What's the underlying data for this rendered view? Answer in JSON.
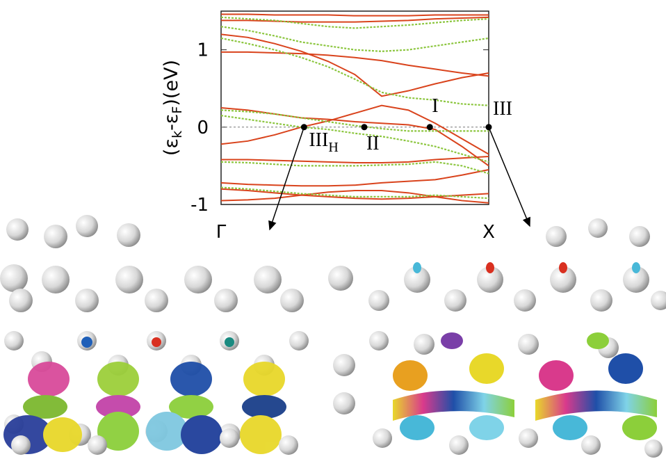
{
  "chart_data": {
    "type": "line",
    "ylabel_parts": [
      "(ε",
      "k",
      "-ε",
      "F",
      ")(eV)"
    ],
    "x": [
      0,
      0.1,
      0.2,
      0.3,
      0.4,
      0.5,
      0.6,
      0.7,
      0.8,
      0.9,
      1
    ],
    "xlim": [
      0,
      1
    ],
    "xticks": [
      {
        "value": 0,
        "label": "Γ"
      },
      {
        "value": 1,
        "label": "X"
      }
    ],
    "ylim": [
      -1,
      1.5
    ],
    "yticks": [
      -1,
      0,
      1
    ],
    "hline": 0,
    "series": [
      {
        "color": "#d9431c",
        "style": "solid",
        "values": [
          1.46,
          1.46,
          1.45,
          1.45,
          1.45,
          1.44,
          1.44,
          1.44,
          1.45,
          1.45,
          1.45
        ]
      },
      {
        "color": "#d9431c",
        "style": "solid",
        "values": [
          1.38,
          1.38,
          1.37,
          1.36,
          1.36,
          1.36,
          1.37,
          1.38,
          1.4,
          1.41,
          1.42
        ]
      },
      {
        "color": "#d9431c",
        "style": "solid",
        "values": [
          1.2,
          1.16,
          1.08,
          0.98,
          0.85,
          0.68,
          0.4,
          0.47,
          0.56,
          0.64,
          0.7
        ]
      },
      {
        "color": "#d9431c",
        "style": "solid",
        "values": [
          0.97,
          0.97,
          0.96,
          0.95,
          0.93,
          0.9,
          0.86,
          0.8,
          0.75,
          0.7,
          0.66
        ]
      },
      {
        "color": "#d9431c",
        "style": "solid",
        "values": [
          0.25,
          0.22,
          0.17,
          0.12,
          0.1,
          0.07,
          0.05,
          0.03,
          -0.03,
          -0.25,
          -0.5
        ]
      },
      {
        "color": "#d9431c",
        "style": "solid",
        "values": [
          -0.22,
          -0.18,
          -0.1,
          0,
          0.08,
          0.18,
          0.28,
          0.22,
          0.05,
          -0.15,
          -0.35
        ]
      },
      {
        "color": "#d9431c",
        "style": "solid",
        "values": [
          -0.42,
          -0.42,
          -0.43,
          -0.44,
          -0.45,
          -0.46,
          -0.46,
          -0.45,
          -0.42,
          -0.4,
          -0.38
        ]
      },
      {
        "color": "#d9431c",
        "style": "solid",
        "values": [
          -0.72,
          -0.74,
          -0.75,
          -0.76,
          -0.76,
          -0.75,
          -0.72,
          -0.7,
          -0.68,
          -0.62,
          -0.55
        ]
      },
      {
        "color": "#d9431c",
        "style": "solid",
        "values": [
          -0.8,
          -0.82,
          -0.85,
          -0.88,
          -0.9,
          -0.92,
          -0.93,
          -0.92,
          -0.9,
          -0.88,
          -0.86
        ]
      },
      {
        "color": "#d9431c",
        "style": "solid",
        "values": [
          -0.95,
          -0.94,
          -0.92,
          -0.88,
          -0.84,
          -0.82,
          -0.82,
          -0.85,
          -0.9,
          -0.95,
          -0.98
        ]
      },
      {
        "color": "#8cc63f",
        "style": "dotted",
        "values": [
          1.42,
          1.4,
          1.38,
          1.34,
          1.3,
          1.28,
          1.3,
          1.32,
          1.35,
          1.38,
          1.4
        ]
      },
      {
        "color": "#8cc63f",
        "style": "dotted",
        "values": [
          1.3,
          1.25,
          1.18,
          1.1,
          1.05,
          1.0,
          0.98,
          1.0,
          1.05,
          1.1,
          1.15
        ]
      },
      {
        "color": "#8cc63f",
        "style": "dotted",
        "values": [
          1.15,
          1.08,
          1.0,
          0.9,
          0.78,
          0.62,
          0.45,
          0.38,
          0.35,
          0.3,
          0.28
        ]
      },
      {
        "color": "#8cc63f",
        "style": "dotted",
        "values": [
          0.22,
          0.2,
          0.17,
          0.12,
          0.07,
          0.02,
          -0.02,
          -0.05,
          -0.05,
          -0.05,
          -0.05
        ]
      },
      {
        "color": "#8cc63f",
        "style": "dotted",
        "values": [
          0.15,
          0.1,
          0.05,
          0,
          -0.03,
          -0.08,
          -0.12,
          -0.18,
          -0.25,
          -0.35,
          -0.45
        ]
      },
      {
        "color": "#8cc63f",
        "style": "dotted",
        "values": [
          -0.45,
          -0.46,
          -0.48,
          -0.5,
          -0.5,
          -0.5,
          -0.49,
          -0.48,
          -0.45,
          -0.5,
          -0.6
        ]
      },
      {
        "color": "#8cc63f",
        "style": "dotted",
        "values": [
          -0.78,
          -0.8,
          -0.83,
          -0.86,
          -0.88,
          -0.9,
          -0.9,
          -0.9,
          -0.88,
          -0.9,
          -0.92
        ]
      }
    ],
    "points": [
      {
        "x": 0.31,
        "y": 0,
        "label": "III",
        "sub": "H"
      },
      {
        "x": 0.535,
        "y": 0,
        "label": "II"
      },
      {
        "x": 0.78,
        "y": 0,
        "label": "I"
      },
      {
        "x": 1,
        "y": 0,
        "label": "III"
      }
    ]
  }
}
